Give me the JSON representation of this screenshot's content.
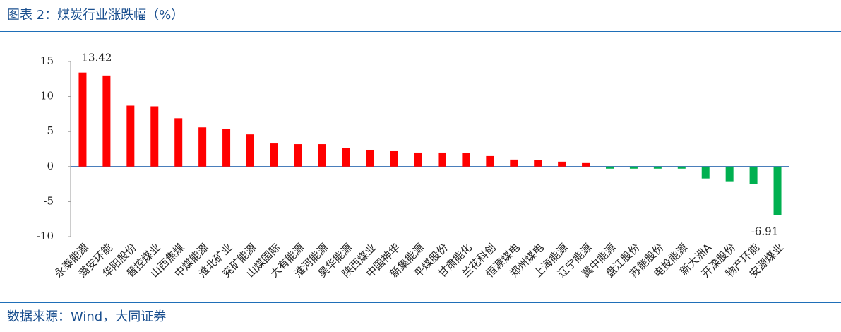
{
  "chart_data": {
    "type": "bar",
    "title": "图表 2：煤炭行业涨跌幅（%）",
    "source": "数据来源：Wind，大同证券",
    "categories": [
      "永泰能源",
      "潞安环能",
      "华阳股份",
      "晋控煤业",
      "山西焦煤",
      "中煤能源",
      "淮北矿业",
      "兖矿能源",
      "山煤国际",
      "大有能源",
      "淮河能源",
      "昊华能源",
      "陕西煤业",
      "中国神华",
      "新集能源",
      "平煤股份",
      "甘肃能化",
      "兰花科创",
      "恒源煤电",
      "郑州煤电",
      "上海能源",
      "辽宁能源",
      "冀中能源",
      "盘江股份",
      "苏能股份",
      "电投能源",
      "新大洲A",
      "开滦股份",
      "物产环能",
      "安源煤业"
    ],
    "values": [
      13.42,
      13.0,
      8.7,
      8.6,
      6.9,
      5.6,
      5.4,
      4.6,
      3.3,
      3.2,
      3.2,
      2.7,
      2.4,
      2.2,
      2.0,
      2.0,
      1.9,
      1.5,
      1.0,
      0.9,
      0.7,
      0.5,
      -0.3,
      -0.3,
      -0.3,
      -0.3,
      -1.7,
      -2.1,
      -2.5,
      -6.91
    ],
    "value_labels": [
      "13.42",
      null,
      null,
      null,
      null,
      null,
      null,
      null,
      null,
      null,
      null,
      null,
      null,
      null,
      null,
      null,
      null,
      null,
      null,
      null,
      null,
      null,
      null,
      null,
      null,
      null,
      null,
      null,
      null,
      "-6.91"
    ],
    "positive_color": "#ff0000",
    "negative_color": "#00b050",
    "ylim": [
      -10,
      15
    ],
    "yticks": [
      -10,
      -5,
      0,
      5,
      10,
      15
    ]
  }
}
